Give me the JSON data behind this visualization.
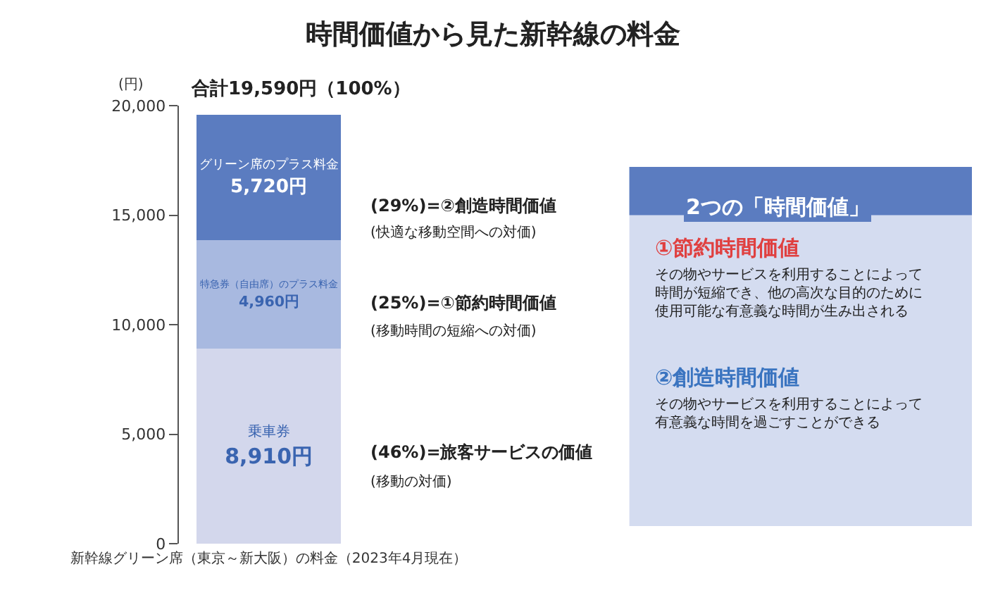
{
  "chart_data": [
    {
      "type": "bar",
      "title": "時間価値から見た新幹線の料金",
      "ylabel": "(円)",
      "xlabel": "新幹線グリーン席（東京～新大阪）の料金（2023年4月現在）",
      "categories": [
        null
      ],
      "stacked": true,
      "series": [
        {
          "name": "乗車券",
          "color": "#d3d7ec",
          "values": [
            8910
          ],
          "value_labels": [
            "8,910円"
          ]
        },
        {
          "name": "特急券（自由席）のプラス料金",
          "color": "#a8b9e0",
          "values": [
            4960
          ],
          "value_labels": [
            "4,960円"
          ]
        },
        {
          "name": "グリーン席のプラス料金",
          "color": "#5b7cc0",
          "values": [
            5720
          ],
          "value_labels": [
            "5,720円"
          ]
        }
      ],
      "totals": [
        "合計19,590円（100%）"
      ],
      "ylim": [
        0,
        20000
      ],
      "yticks": [
        {
          "value": 0,
          "label": "0"
        },
        {
          "value": 5000,
          "label": "5,000"
        },
        {
          "value": 10000,
          "label": "10,000"
        },
        {
          "value": 15000,
          "label": "15,000"
        },
        {
          "value": 20000,
          "label": "20,000"
        }
      ],
      "annotations": [
        "(29%)=②創造時間価値",
        "(快適な移動空間への対価)",
        "(25%)=①節約時間価値",
        "(移動時間の短縮への対価)",
        "(46%)=旅客サービスの価値",
        "(移動の対価)"
      ]
    },
    {
      "type": "other",
      "title": "2つの「時間価値」",
      "annotations": [
        "①節約時間価値",
        "その物やサービスを利用することによって時間が短縮でき、他の高次な目的のために使用可能な有意義な時間が生み出される",
        "②創造時間価値",
        "その物やサービスを利用することによって有意義な時間を過ごすことができる"
      ]
    }
  ]
}
